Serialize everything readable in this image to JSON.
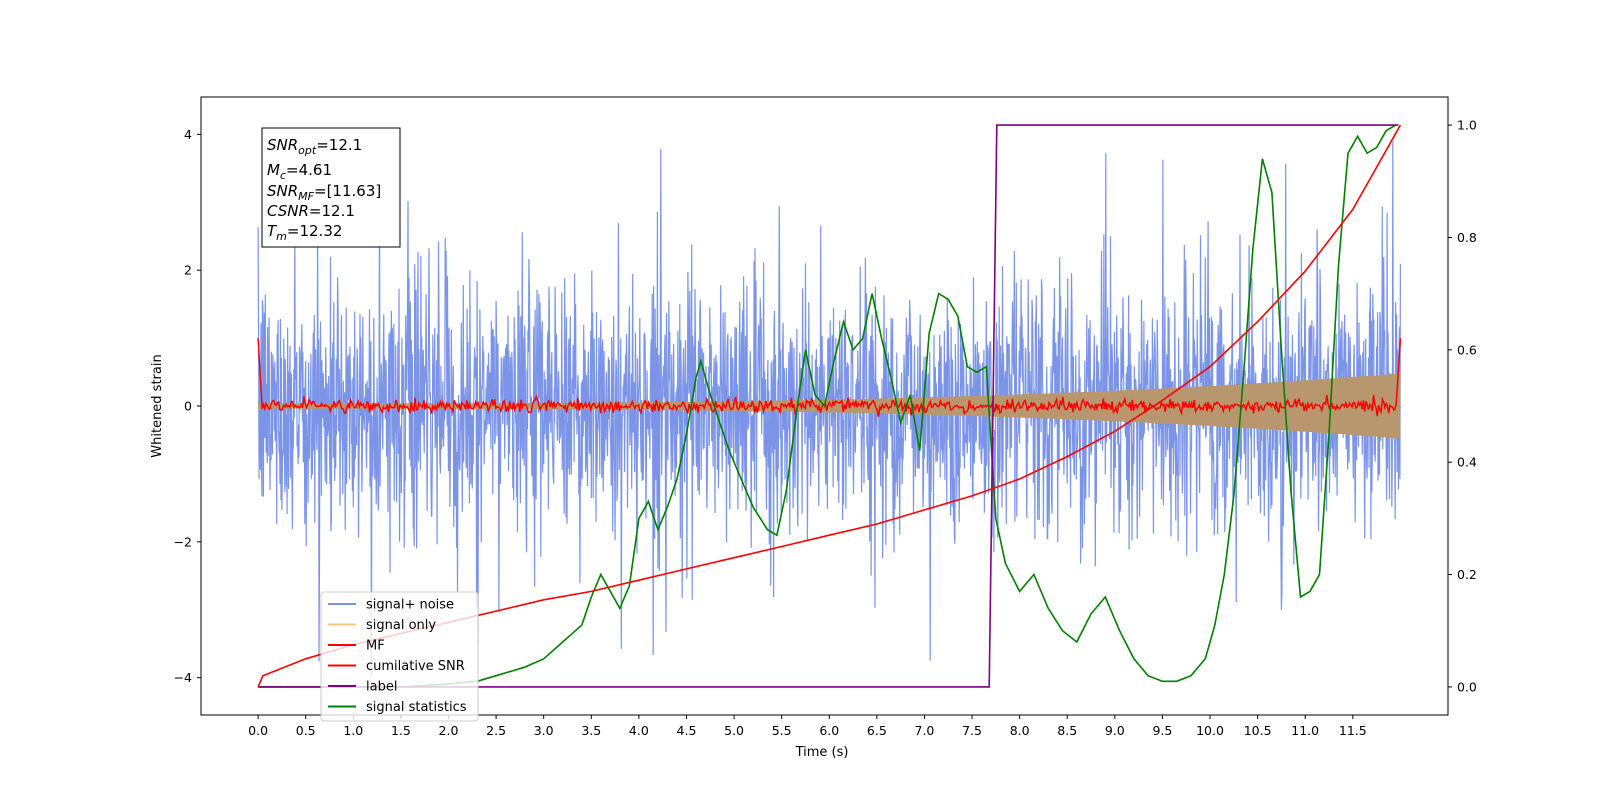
{
  "chart_data": {
    "type": "line",
    "xlabel": "Time (s)",
    "ylabel": "Whitened strain",
    "xlim": [
      -0.6,
      12.5
    ],
    "ylim": [
      -4.55,
      4.55
    ],
    "y2lim": [
      -0.05,
      1.05
    ],
    "x_ticks": [
      "0.0",
      "0.5",
      "1.0",
      "1.5",
      "2.0",
      "2.5",
      "3.0",
      "3.5",
      "4.0",
      "4.5",
      "5.0",
      "5.5",
      "6.0",
      "6.5",
      "7.0",
      "7.5",
      "8.0",
      "8.5",
      "9.0",
      "9.5",
      "10.0",
      "10.5",
      "11.0",
      "11.5"
    ],
    "y_ticks": [
      "-4",
      "-2",
      "0",
      "2",
      "4"
    ],
    "y2_ticks": [
      "0.0",
      "0.2",
      "0.4",
      "0.6",
      "0.8",
      "1.0"
    ],
    "annotation": {
      "snr_opt": {
        "sym": "SNR",
        "sub": "opt",
        "value": "=12.1"
      },
      "mc": {
        "sym": "M",
        "sub": "c",
        "value": "=4.61"
      },
      "snr_mf": {
        "sym": "SNR",
        "sub": "MF",
        "value": "=[11.63]"
      },
      "csnr": {
        "sym": "CSNR",
        "sub": "",
        "value": "=12.1"
      },
      "tm": {
        "sym": "T",
        "sub": "m",
        "value": "=12.32"
      }
    },
    "series": [
      {
        "name": "signal+ noise",
        "color": "#7b94e8",
        "axis": "left",
        "description_x": [
          0,
          12
        ],
        "amplitude_band": [
          -2.6,
          2.6
        ],
        "max_spike": 4.1
      },
      {
        "name": "signal only",
        "color": "#f5c77e",
        "axis": "left",
        "x": [
          0,
          12
        ],
        "envelope": [
          0.04,
          0.48
        ]
      },
      {
        "name": "MF",
        "color": "#ff0000",
        "axis": "left",
        "x": [
          0,
          0.02,
          11.98,
          12
        ],
        "amplitude": 0.1,
        "edge_value": 1.0
      },
      {
        "name": "cumilative SNR",
        "color": "#ff0000",
        "axis": "right",
        "x": [
          0,
          0.05,
          0.5,
          1,
          1.5,
          2,
          2.5,
          3,
          3.5,
          4,
          4.5,
          5,
          5.5,
          6,
          6.5,
          7,
          7.5,
          8,
          8.5,
          9,
          9.5,
          10,
          10.5,
          11,
          11.5,
          12
        ],
        "y": [
          0.0,
          0.02,
          0.05,
          0.075,
          0.095,
          0.115,
          0.135,
          0.155,
          0.17,
          0.19,
          0.21,
          0.23,
          0.25,
          0.27,
          0.29,
          0.315,
          0.34,
          0.37,
          0.41,
          0.455,
          0.51,
          0.57,
          0.65,
          0.74,
          0.85,
          1.0
        ]
      },
      {
        "name": "label",
        "color": "#800080",
        "axis": "right",
        "x": [
          0,
          7.68,
          7.76,
          11.98
        ],
        "y": [
          0,
          0,
          1,
          1
        ]
      },
      {
        "name": "signal statistics",
        "color": "#008000",
        "axis": "right",
        "x": [
          0,
          0.5,
          1,
          1.5,
          2,
          2.3,
          2.5,
          2.8,
          3,
          3.2,
          3.4,
          3.5,
          3.6,
          3.7,
          3.8,
          3.9,
          4,
          4.1,
          4.2,
          4.3,
          4.4,
          4.5,
          4.6,
          4.65,
          4.75,
          4.85,
          4.95,
          5.05,
          5.2,
          5.35,
          5.45,
          5.55,
          5.65,
          5.75,
          5.85,
          5.95,
          6.05,
          6.15,
          6.25,
          6.35,
          6.45,
          6.55,
          6.65,
          6.75,
          6.85,
          6.95,
          7.05,
          7.15,
          7.25,
          7.35,
          7.45,
          7.55,
          7.65,
          7.75,
          7.85,
          8,
          8.15,
          8.3,
          8.45,
          8.6,
          8.75,
          8.9,
          9.05,
          9.2,
          9.35,
          9.5,
          9.65,
          9.8,
          9.95,
          10.05,
          10.15,
          10.25,
          10.35,
          10.45,
          10.55,
          10.65,
          10.75,
          10.85,
          10.95,
          11.05,
          11.15,
          11.25,
          11.35,
          11.45,
          11.55,
          11.65,
          11.75,
          11.85,
          11.95
        ],
        "y": [
          0.0,
          0.0,
          0.0,
          0.0,
          0.005,
          0.01,
          0.02,
          0.035,
          0.05,
          0.08,
          0.11,
          0.16,
          0.2,
          0.17,
          0.14,
          0.18,
          0.3,
          0.33,
          0.28,
          0.32,
          0.37,
          0.45,
          0.55,
          0.58,
          0.52,
          0.47,
          0.42,
          0.38,
          0.32,
          0.28,
          0.27,
          0.35,
          0.48,
          0.6,
          0.52,
          0.5,
          0.58,
          0.65,
          0.6,
          0.62,
          0.7,
          0.62,
          0.55,
          0.47,
          0.52,
          0.42,
          0.63,
          0.7,
          0.69,
          0.66,
          0.57,
          0.56,
          0.57,
          0.3,
          0.22,
          0.17,
          0.2,
          0.14,
          0.1,
          0.08,
          0.13,
          0.16,
          0.1,
          0.05,
          0.02,
          0.01,
          0.01,
          0.02,
          0.05,
          0.11,
          0.2,
          0.34,
          0.55,
          0.78,
          0.94,
          0.88,
          0.6,
          0.35,
          0.16,
          0.17,
          0.2,
          0.45,
          0.75,
          0.95,
          0.98,
          0.95,
          0.96,
          0.99,
          1.0
        ]
      }
    ],
    "legend_position": "lower-left",
    "grid": false
  }
}
